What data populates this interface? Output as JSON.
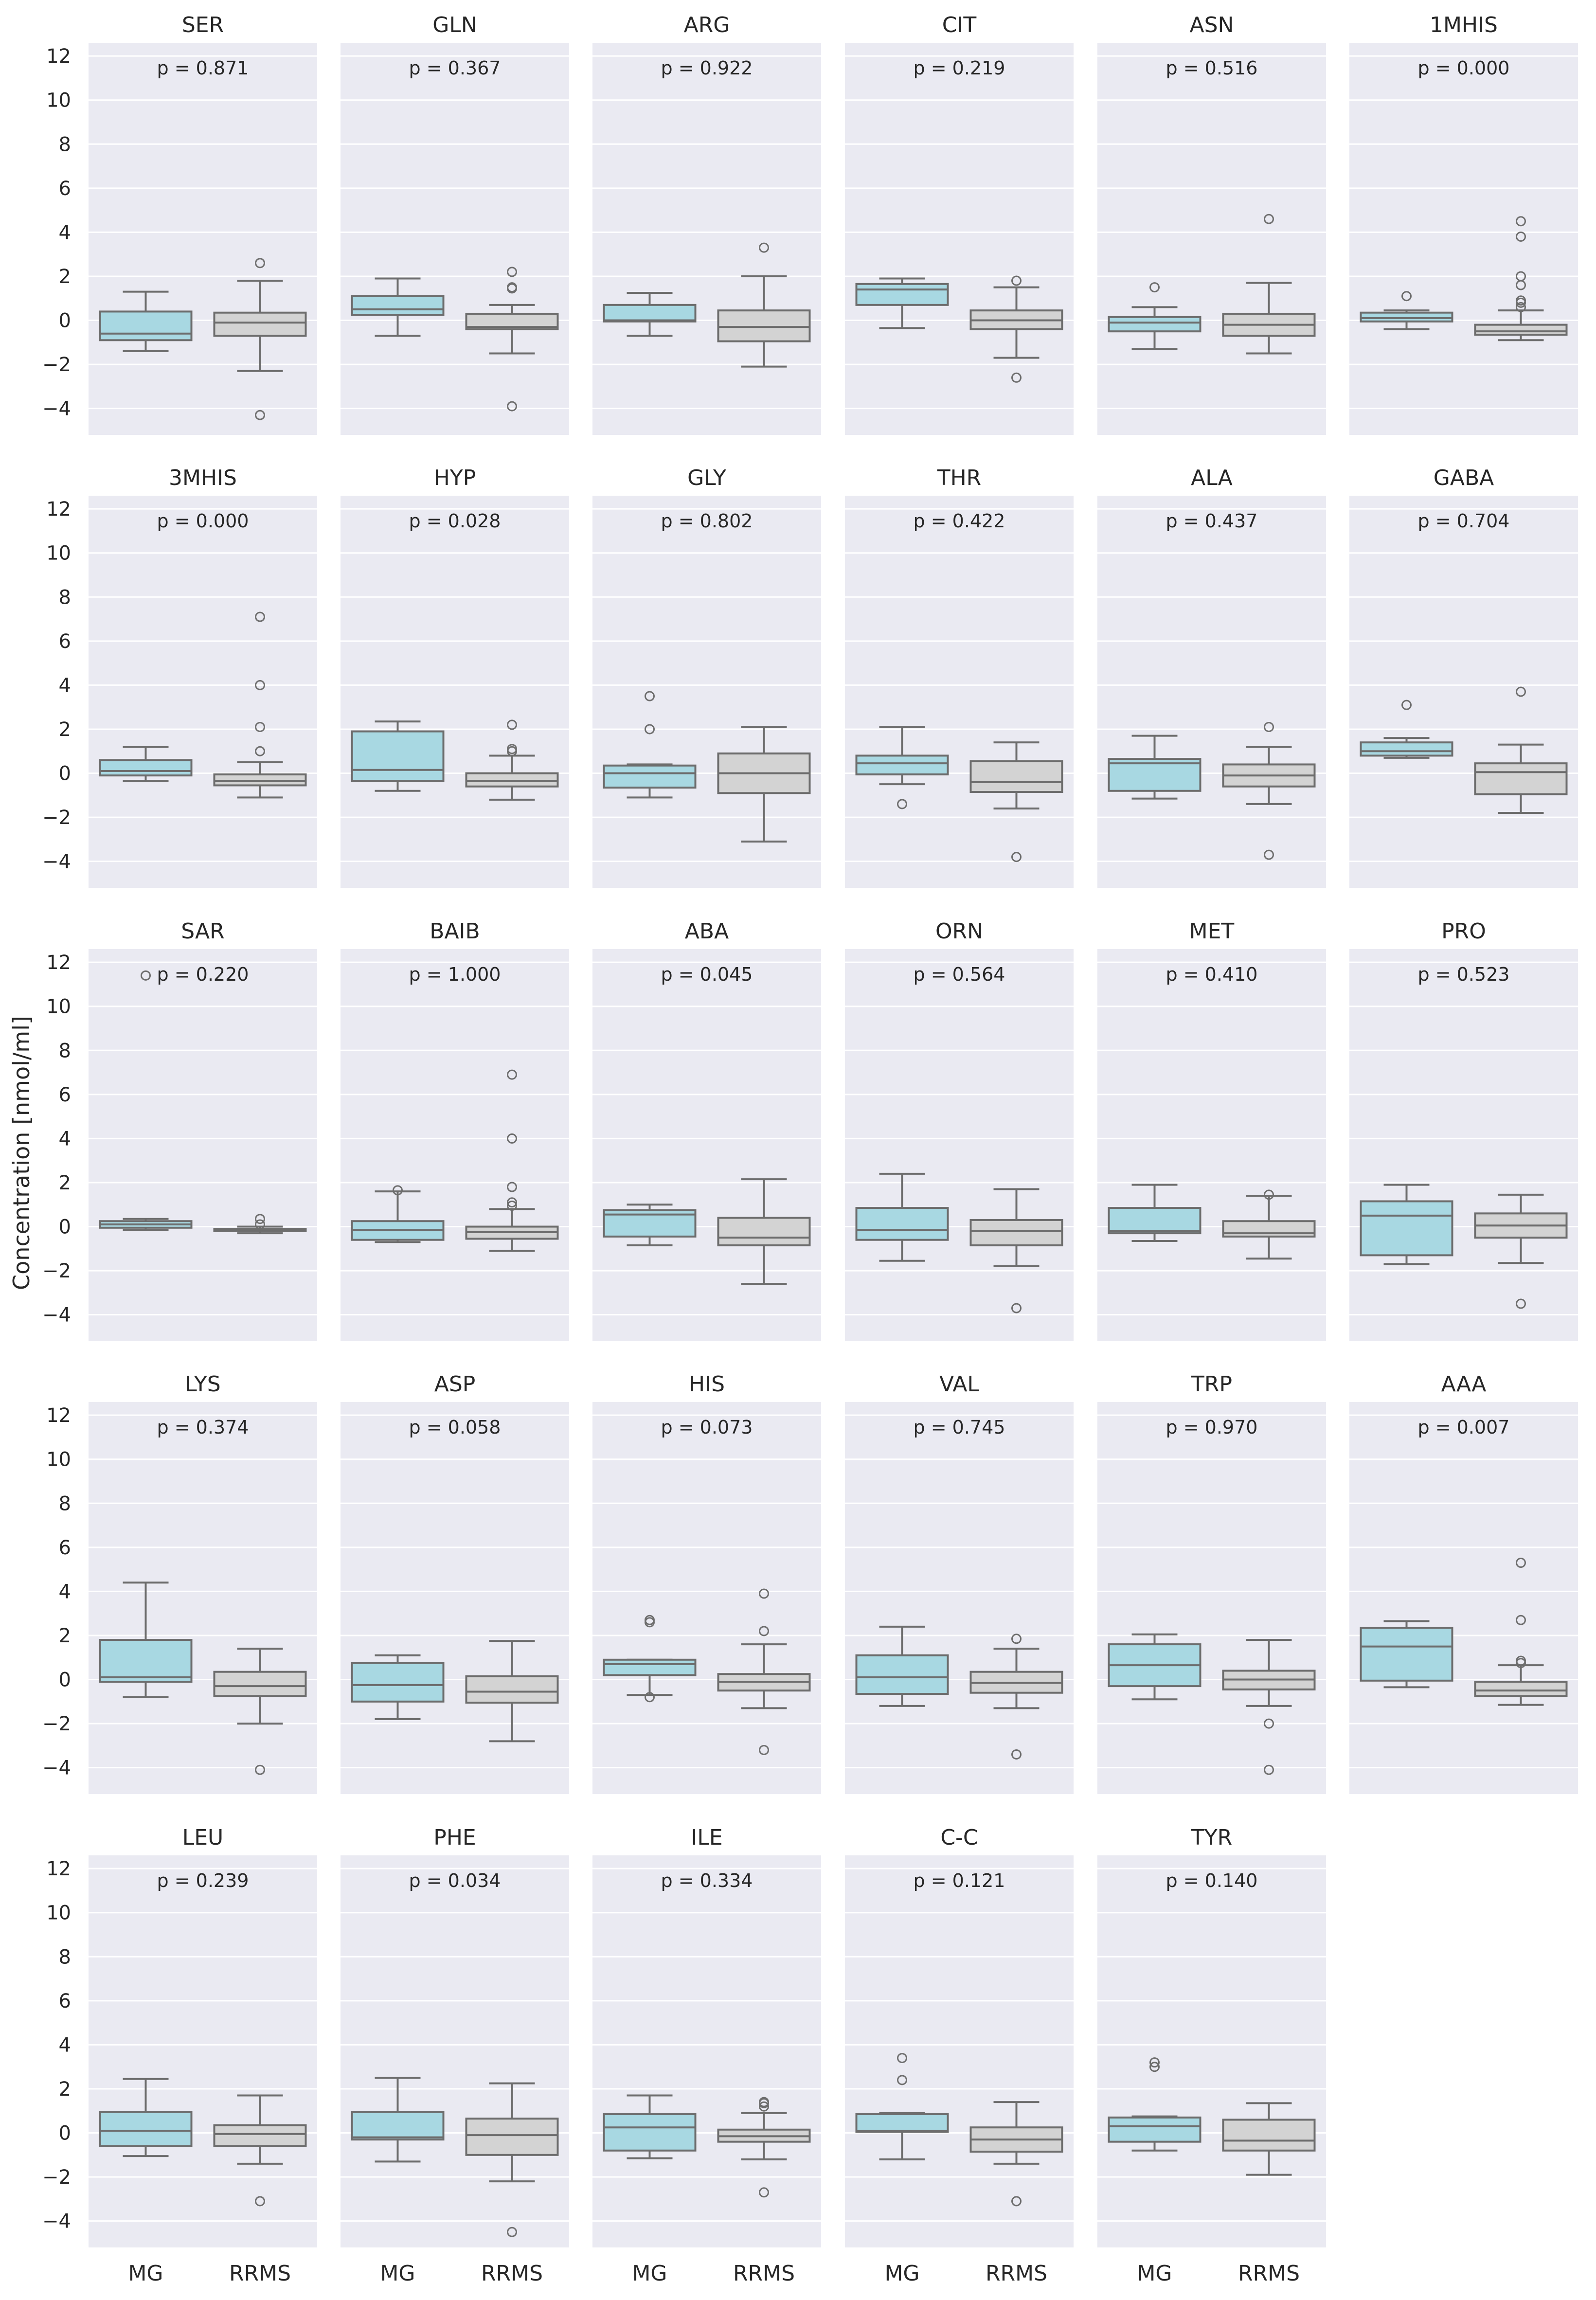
{
  "chart_data": {
    "type": "box",
    "ylabel": "Concentration [nmol/ml]",
    "ylim": [
      -5.2,
      12.6
    ],
    "yticks": [
      -4,
      -2,
      0,
      2,
      4,
      6,
      8,
      10,
      12
    ],
    "ytick_labels": [
      "−4",
      "−2",
      "0",
      "2",
      "4",
      "6",
      "8",
      "10",
      "12"
    ],
    "grid": true,
    "categories": [
      "MG",
      "RRMS"
    ],
    "colors": {
      "MG": "#a8d8e2",
      "RRMS": "#d3d3d3",
      "panel_bg": "#eaeaf2",
      "line": "#6d6d6d",
      "grid": "#ffffff"
    },
    "panels": [
      {
        "title": "SER",
        "p": "p = 0.871",
        "MG": {
          "whislo": -1.4,
          "q1": -0.9,
          "med": -0.6,
          "q3": 0.4,
          "whishi": 1.3,
          "fliers": []
        },
        "RRMS": {
          "whislo": -2.3,
          "q1": -0.7,
          "med": -0.1,
          "q3": 0.35,
          "whishi": 1.8,
          "fliers": [
            2.6,
            -4.3
          ]
        }
      },
      {
        "title": "GLN",
        "p": "p = 0.367",
        "MG": {
          "whislo": -0.7,
          "q1": 0.25,
          "med": 0.5,
          "q3": 1.1,
          "whishi": 1.9,
          "fliers": []
        },
        "RRMS": {
          "whislo": -1.5,
          "q1": -0.4,
          "med": -0.3,
          "q3": 0.3,
          "whishi": 0.7,
          "fliers": [
            2.2,
            1.5,
            1.45,
            -3.9
          ]
        }
      },
      {
        "title": "ARG",
        "p": "p = 0.922",
        "MG": {
          "whislo": -0.7,
          "q1": -0.05,
          "med": 0.0,
          "q3": 0.7,
          "whishi": 1.25,
          "fliers": []
        },
        "RRMS": {
          "whislo": -2.1,
          "q1": -0.95,
          "med": -0.3,
          "q3": 0.45,
          "whishi": 2.0,
          "fliers": [
            3.3
          ]
        }
      },
      {
        "title": "CIT",
        "p": "p = 0.219",
        "MG": {
          "whislo": -0.35,
          "q1": 0.7,
          "med": 1.4,
          "q3": 1.65,
          "whishi": 1.9,
          "fliers": []
        },
        "RRMS": {
          "whislo": -1.7,
          "q1": -0.4,
          "med": 0.0,
          "q3": 0.45,
          "whishi": 1.5,
          "fliers": [
            1.8,
            -2.6
          ]
        }
      },
      {
        "title": "ASN",
        "p": "p = 0.516",
        "MG": {
          "whislo": -1.3,
          "q1": -0.5,
          "med": -0.1,
          "q3": 0.15,
          "whishi": 0.6,
          "fliers": [
            1.5
          ]
        },
        "RRMS": {
          "whislo": -1.5,
          "q1": -0.7,
          "med": -0.2,
          "q3": 0.3,
          "whishi": 1.7,
          "fliers": [
            4.6
          ]
        }
      },
      {
        "title": "1MHIS",
        "p": "p = 0.000",
        "MG": {
          "whislo": -0.4,
          "q1": -0.05,
          "med": 0.1,
          "q3": 0.35,
          "whishi": 0.45,
          "fliers": [
            1.1
          ]
        },
        "RRMS": {
          "whislo": -0.9,
          "q1": -0.65,
          "med": -0.5,
          "q3": -0.2,
          "whishi": 0.45,
          "fliers": [
            4.5,
            3.8,
            2.0,
            1.6,
            0.9,
            0.8,
            0.6
          ]
        }
      },
      {
        "title": "3MHIS",
        "p": "p = 0.000",
        "MG": {
          "whislo": -0.35,
          "q1": -0.1,
          "med": 0.1,
          "q3": 0.6,
          "whishi": 1.2,
          "fliers": []
        },
        "RRMS": {
          "whislo": -1.1,
          "q1": -0.55,
          "med": -0.35,
          "q3": -0.05,
          "whishi": 0.5,
          "fliers": [
            7.1,
            4.0,
            2.1,
            1.0
          ]
        }
      },
      {
        "title": "HYP",
        "p": "p = 0.028",
        "MG": {
          "whislo": -0.8,
          "q1": -0.35,
          "med": 0.15,
          "q3": 1.9,
          "whishi": 2.35,
          "fliers": []
        },
        "RRMS": {
          "whislo": -1.2,
          "q1": -0.6,
          "med": -0.35,
          "q3": 0.0,
          "whishi": 0.8,
          "fliers": [
            2.2,
            1.1,
            1.0
          ]
        }
      },
      {
        "title": "GLY",
        "p": "p = 0.802",
        "MG": {
          "whislo": -1.1,
          "q1": -0.65,
          "med": 0.0,
          "q3": 0.35,
          "whishi": 0.4,
          "fliers": [
            3.5,
            2.0
          ]
        },
        "RRMS": {
          "whislo": -3.1,
          "q1": -0.9,
          "med": 0.0,
          "q3": 0.9,
          "whishi": 2.1,
          "fliers": []
        }
      },
      {
        "title": "THR",
        "p": "p = 0.422",
        "MG": {
          "whislo": -0.5,
          "q1": -0.05,
          "med": 0.45,
          "q3": 0.8,
          "whishi": 2.1,
          "fliers": [
            -1.4
          ]
        },
        "RRMS": {
          "whislo": -1.6,
          "q1": -0.85,
          "med": -0.4,
          "q3": 0.55,
          "whishi": 1.4,
          "fliers": [
            -3.8
          ]
        }
      },
      {
        "title": "ALA",
        "p": "p = 0.437",
        "MG": {
          "whislo": -1.15,
          "q1": -0.8,
          "med": 0.45,
          "q3": 0.65,
          "whishi": 1.7,
          "fliers": []
        },
        "RRMS": {
          "whislo": -1.4,
          "q1": -0.6,
          "med": -0.1,
          "q3": 0.4,
          "whishi": 1.2,
          "fliers": [
            2.1,
            -3.7
          ]
        }
      },
      {
        "title": "GABA",
        "p": "p = 0.704",
        "MG": {
          "whislo": 0.7,
          "q1": 0.8,
          "med": 1.0,
          "q3": 1.4,
          "whishi": 1.6,
          "fliers": [
            3.1
          ]
        },
        "RRMS": {
          "whislo": -1.8,
          "q1": -0.95,
          "med": 0.05,
          "q3": 0.45,
          "whishi": 1.3,
          "fliers": [
            3.7
          ]
        }
      },
      {
        "title": "SAR",
        "p": "p = 0.220",
        "MG": {
          "whislo": -0.15,
          "q1": -0.05,
          "med": 0.1,
          "q3": 0.25,
          "whishi": 0.35,
          "fliers": [
            11.4
          ]
        },
        "RRMS": {
          "whislo": -0.3,
          "q1": -0.2,
          "med": -0.15,
          "q3": -0.1,
          "whishi": 0.0,
          "fliers": [
            0.35,
            0.1
          ]
        }
      },
      {
        "title": "BAIB",
        "p": "p = 1.000",
        "MG": {
          "whislo": -0.7,
          "q1": -0.6,
          "med": -0.15,
          "q3": 0.25,
          "whishi": 1.6,
          "fliers": [
            1.65
          ]
        },
        "RRMS": {
          "whislo": -1.1,
          "q1": -0.55,
          "med": -0.25,
          "q3": 0.0,
          "whishi": 0.8,
          "fliers": [
            6.9,
            4.0,
            1.8,
            1.1,
            0.95
          ]
        }
      },
      {
        "title": "ABA",
        "p": "p = 0.045",
        "MG": {
          "whislo": -0.85,
          "q1": -0.45,
          "med": 0.55,
          "q3": 0.75,
          "whishi": 1.0,
          "fliers": []
        },
        "RRMS": {
          "whislo": -2.6,
          "q1": -0.85,
          "med": -0.5,
          "q3": 0.4,
          "whishi": 2.15,
          "fliers": []
        }
      },
      {
        "title": "ORN",
        "p": "p = 0.564",
        "MG": {
          "whislo": -1.55,
          "q1": -0.6,
          "med": -0.15,
          "q3": 0.85,
          "whishi": 2.4,
          "fliers": []
        },
        "RRMS": {
          "whislo": -1.8,
          "q1": -0.85,
          "med": -0.2,
          "q3": 0.3,
          "whishi": 1.7,
          "fliers": [
            -3.7
          ]
        }
      },
      {
        "title": "MET",
        "p": "p = 0.410",
        "MG": {
          "whislo": -0.65,
          "q1": -0.3,
          "med": -0.2,
          "q3": 0.85,
          "whishi": 1.9,
          "fliers": []
        },
        "RRMS": {
          "whislo": -1.45,
          "q1": -0.45,
          "med": -0.3,
          "q3": 0.25,
          "whishi": 1.4,
          "fliers": [
            1.45
          ]
        }
      },
      {
        "title": "PRO",
        "p": "p = 0.523",
        "MG": {
          "whislo": -1.7,
          "q1": -1.3,
          "med": 0.5,
          "q3": 1.15,
          "whishi": 1.9,
          "fliers": []
        },
        "RRMS": {
          "whislo": -1.65,
          "q1": -0.5,
          "med": 0.05,
          "q3": 0.6,
          "whishi": 1.45,
          "fliers": [
            -3.5
          ]
        }
      },
      {
        "title": "LYS",
        "p": "p = 0.374",
        "MG": {
          "whislo": -0.8,
          "q1": -0.1,
          "med": 0.1,
          "q3": 1.8,
          "whishi": 4.4,
          "fliers": []
        },
        "RRMS": {
          "whislo": -2.0,
          "q1": -0.75,
          "med": -0.3,
          "q3": 0.35,
          "whishi": 1.4,
          "fliers": [
            -4.1
          ]
        }
      },
      {
        "title": "ASP",
        "p": "p = 0.058",
        "MG": {
          "whislo": -1.8,
          "q1": -1.0,
          "med": -0.25,
          "q3": 0.75,
          "whishi": 1.1,
          "fliers": []
        },
        "RRMS": {
          "whislo": -2.8,
          "q1": -1.05,
          "med": -0.55,
          "q3": 0.15,
          "whishi": 1.75,
          "fliers": []
        }
      },
      {
        "title": "HIS",
        "p": "p = 0.073",
        "MG": {
          "whislo": -0.7,
          "q1": 0.2,
          "med": 0.7,
          "q3": 0.9,
          "whishi": 0.9,
          "fliers": [
            2.7,
            2.6,
            -0.8
          ]
        },
        "RRMS": {
          "whislo": -1.3,
          "q1": -0.5,
          "med": -0.1,
          "q3": 0.25,
          "whishi": 1.6,
          "fliers": [
            3.9,
            2.2,
            -3.2
          ]
        }
      },
      {
        "title": "VAL",
        "p": "p = 0.745",
        "MG": {
          "whislo": -1.2,
          "q1": -0.65,
          "med": 0.1,
          "q3": 1.1,
          "whishi": 2.4,
          "fliers": []
        },
        "RRMS": {
          "whislo": -1.3,
          "q1": -0.6,
          "med": -0.15,
          "q3": 0.35,
          "whishi": 1.4,
          "fliers": [
            1.85,
            -3.4
          ]
        }
      },
      {
        "title": "TRP",
        "p": "p = 0.970",
        "MG": {
          "whislo": -0.9,
          "q1": -0.3,
          "med": 0.65,
          "q3": 1.6,
          "whishi": 2.05,
          "fliers": []
        },
        "RRMS": {
          "whislo": -1.2,
          "q1": -0.45,
          "med": 0.0,
          "q3": 0.4,
          "whishi": 1.8,
          "fliers": [
            -2.0,
            -4.1
          ]
        }
      },
      {
        "title": "AAA",
        "p": "p = 0.007",
        "MG": {
          "whislo": -0.35,
          "q1": -0.05,
          "med": 1.5,
          "q3": 2.35,
          "whishi": 2.65,
          "fliers": []
        },
        "RRMS": {
          "whislo": -1.15,
          "q1": -0.75,
          "med": -0.5,
          "q3": -0.1,
          "whishi": 0.65,
          "fliers": [
            5.3,
            2.7,
            0.85,
            0.75
          ]
        }
      },
      {
        "title": "LEU",
        "p": "p = 0.239",
        "MG": {
          "whislo": -1.05,
          "q1": -0.6,
          "med": 0.1,
          "q3": 0.95,
          "whishi": 2.45,
          "fliers": []
        },
        "RRMS": {
          "whislo": -1.4,
          "q1": -0.6,
          "med": -0.05,
          "q3": 0.35,
          "whishi": 1.7,
          "fliers": [
            -3.1
          ]
        }
      },
      {
        "title": "PHE",
        "p": "p = 0.034",
        "MG": {
          "whislo": -1.3,
          "q1": -0.3,
          "med": -0.2,
          "q3": 0.95,
          "whishi": 2.5,
          "fliers": []
        },
        "RRMS": {
          "whislo": -2.2,
          "q1": -1.0,
          "med": -0.1,
          "q3": 0.65,
          "whishi": 2.25,
          "fliers": [
            -4.5
          ]
        }
      },
      {
        "title": "ILE",
        "p": "p = 0.334",
        "MG": {
          "whislo": -1.15,
          "q1": -0.8,
          "med": 0.25,
          "q3": 0.85,
          "whishi": 1.7,
          "fliers": []
        },
        "RRMS": {
          "whislo": -1.2,
          "q1": -0.4,
          "med": -0.15,
          "q3": 0.15,
          "whishi": 0.9,
          "fliers": [
            1.4,
            1.35,
            1.2,
            -2.7
          ]
        }
      },
      {
        "title": "C-C",
        "p": "p = 0.121",
        "MG": {
          "whislo": -1.2,
          "q1": 0.05,
          "med": 0.1,
          "q3": 0.85,
          "whishi": 0.9,
          "fliers": [
            3.4,
            2.4
          ]
        },
        "RRMS": {
          "whislo": -1.4,
          "q1": -0.85,
          "med": -0.3,
          "q3": 0.25,
          "whishi": 1.4,
          "fliers": [
            -3.1
          ]
        }
      },
      {
        "title": "TYR",
        "p": "p = 0.140",
        "MG": {
          "whislo": -0.8,
          "q1": -0.4,
          "med": 0.3,
          "q3": 0.7,
          "whishi": 0.75,
          "fliers": [
            3.2,
            3.0
          ]
        },
        "RRMS": {
          "whislo": -1.9,
          "q1": -0.8,
          "med": -0.35,
          "q3": 0.6,
          "whishi": 1.35,
          "fliers": []
        }
      }
    ]
  }
}
